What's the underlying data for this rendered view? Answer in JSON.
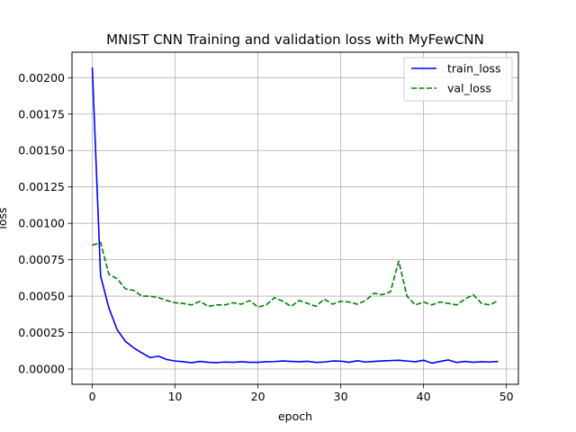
{
  "chart_data": {
    "type": "line",
    "title": "MNIST CNN Training and validation loss with MyFewCNN",
    "xlabel": "epoch",
    "ylabel": "loss",
    "xlim": [
      -2.45,
      51.45
    ],
    "ylim": [
      -0.000105,
      0.002175
    ],
    "xticks": [
      0,
      10,
      20,
      30,
      40,
      50
    ],
    "xtick_labels": [
      "0",
      "10",
      "20",
      "30",
      "40",
      "50"
    ],
    "yticks": [
      0,
      0.00025,
      0.0005,
      0.00075,
      0.001,
      0.00125,
      0.0015,
      0.00175,
      0.002
    ],
    "ytick_labels": [
      "0.00000",
      "0.00025",
      "0.00050",
      "0.00075",
      "0.00100",
      "0.00125",
      "0.00150",
      "0.00175",
      "0.00200"
    ],
    "grid": true,
    "legend_position": "top-right",
    "x": [
      0,
      1,
      2,
      3,
      4,
      5,
      6,
      7,
      8,
      9,
      10,
      11,
      12,
      13,
      14,
      15,
      16,
      17,
      18,
      19,
      20,
      21,
      22,
      23,
      24,
      25,
      26,
      27,
      28,
      29,
      30,
      31,
      32,
      33,
      34,
      35,
      36,
      37,
      38,
      39,
      40,
      41,
      42,
      43,
      44,
      45,
      46,
      47,
      48,
      49
    ],
    "series": [
      {
        "name": "train_loss",
        "color": "#0000ff",
        "style": "solid",
        "values": [
          0.00207,
          0.00064,
          0.00042,
          0.00027,
          0.00019,
          0.000145,
          0.00011,
          7.8e-05,
          8.8e-05,
          6.5e-05,
          5.5e-05,
          5e-05,
          4.3e-05,
          5.2e-05,
          4.6e-05,
          4.4e-05,
          4.8e-05,
          4.6e-05,
          5e-05,
          4.6e-05,
          4.6e-05,
          5e-05,
          5.1e-05,
          5.5e-05,
          5.2e-05,
          5e-05,
          5.3e-05,
          4.5e-05,
          4.8e-05,
          5.5e-05,
          5.4e-05,
          4.6e-05,
          5.7e-05,
          4.8e-05,
          5.2e-05,
          5.5e-05,
          5.8e-05,
          6e-05,
          5.5e-05,
          5e-05,
          6e-05,
          4e-05,
          5.2e-05,
          6.2e-05,
          4.5e-05,
          5.2e-05,
          4.6e-05,
          5e-05,
          4.8e-05,
          5.2e-05
        ]
      },
      {
        "name": "val_loss",
        "color": "#008000",
        "style": "dashed",
        "values": [
          0.00085,
          0.00087,
          0.00065,
          0.00062,
          0.00055,
          0.00054,
          0.0005,
          0.0005,
          0.00049,
          0.00047,
          0.000455,
          0.00045,
          0.00044,
          0.000465,
          0.00043,
          0.00044,
          0.00044,
          0.000455,
          0.000445,
          0.00047,
          0.000425,
          0.00044,
          0.00049,
          0.000465,
          0.00043,
          0.00047,
          0.00045,
          0.00043,
          0.00048,
          0.000445,
          0.000465,
          0.00046,
          0.000445,
          0.00047,
          0.00052,
          0.00051,
          0.00053,
          0.00074,
          0.0005,
          0.00044,
          0.00046,
          0.00044,
          0.00046,
          0.00045,
          0.00044,
          0.00048,
          0.00051,
          0.00045,
          0.00044,
          0.00047
        ]
      }
    ]
  }
}
